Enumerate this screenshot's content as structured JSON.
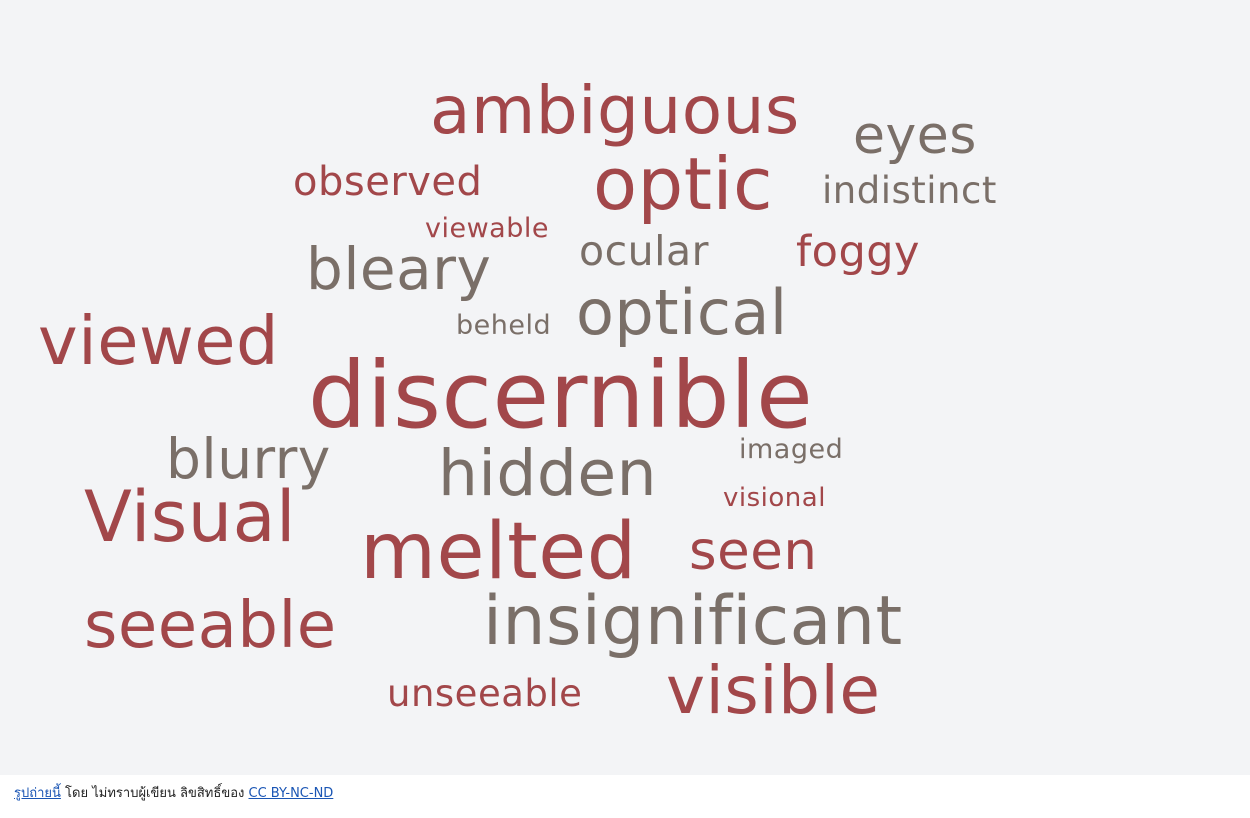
{
  "colors": {
    "red": "#a2474a",
    "brown": "#7a6f68",
    "panel_bg": "#f3f4f6",
    "link": "#1a55b4"
  },
  "word_cloud": {
    "words": [
      {
        "text": "ambiguous",
        "color": "#a2474a"
      },
      {
        "text": "eyes",
        "color": "#7a6f68"
      },
      {
        "text": "observed",
        "color": "#a2474a"
      },
      {
        "text": "optic",
        "color": "#a2474a"
      },
      {
        "text": "indistinct",
        "color": "#7a6f68"
      },
      {
        "text": "viewable",
        "color": "#a2474a"
      },
      {
        "text": "bleary",
        "color": "#7a6f68"
      },
      {
        "text": "ocular",
        "color": "#7a6f68"
      },
      {
        "text": "foggy",
        "color": "#a2474a"
      },
      {
        "text": "viewed",
        "color": "#a2474a"
      },
      {
        "text": "beheld",
        "color": "#7a6f68"
      },
      {
        "text": "optical",
        "color": "#7a6f68"
      },
      {
        "text": "discernible",
        "color": "#a2474a"
      },
      {
        "text": "blurry",
        "color": "#7a6f68"
      },
      {
        "text": "hidden",
        "color": "#7a6f68"
      },
      {
        "text": "imaged",
        "color": "#7a6f68"
      },
      {
        "text": "visional",
        "color": "#a2474a"
      },
      {
        "text": "Visual",
        "color": "#a2474a"
      },
      {
        "text": "melted",
        "color": "#a2474a"
      },
      {
        "text": "seen",
        "color": "#a2474a"
      },
      {
        "text": "seeable",
        "color": "#a2474a"
      },
      {
        "text": "insignificant",
        "color": "#7a6f68"
      },
      {
        "text": "unseeable",
        "color": "#a2474a"
      },
      {
        "text": "visible",
        "color": "#a2474a"
      }
    ]
  },
  "caption": {
    "link_photo": "รูปถ่ายนี้",
    "by_text": " โดย ไม่ทราบผู้เขียน ลิขสิทธิ์ของ ",
    "license_link": "CC BY-NC-ND"
  }
}
